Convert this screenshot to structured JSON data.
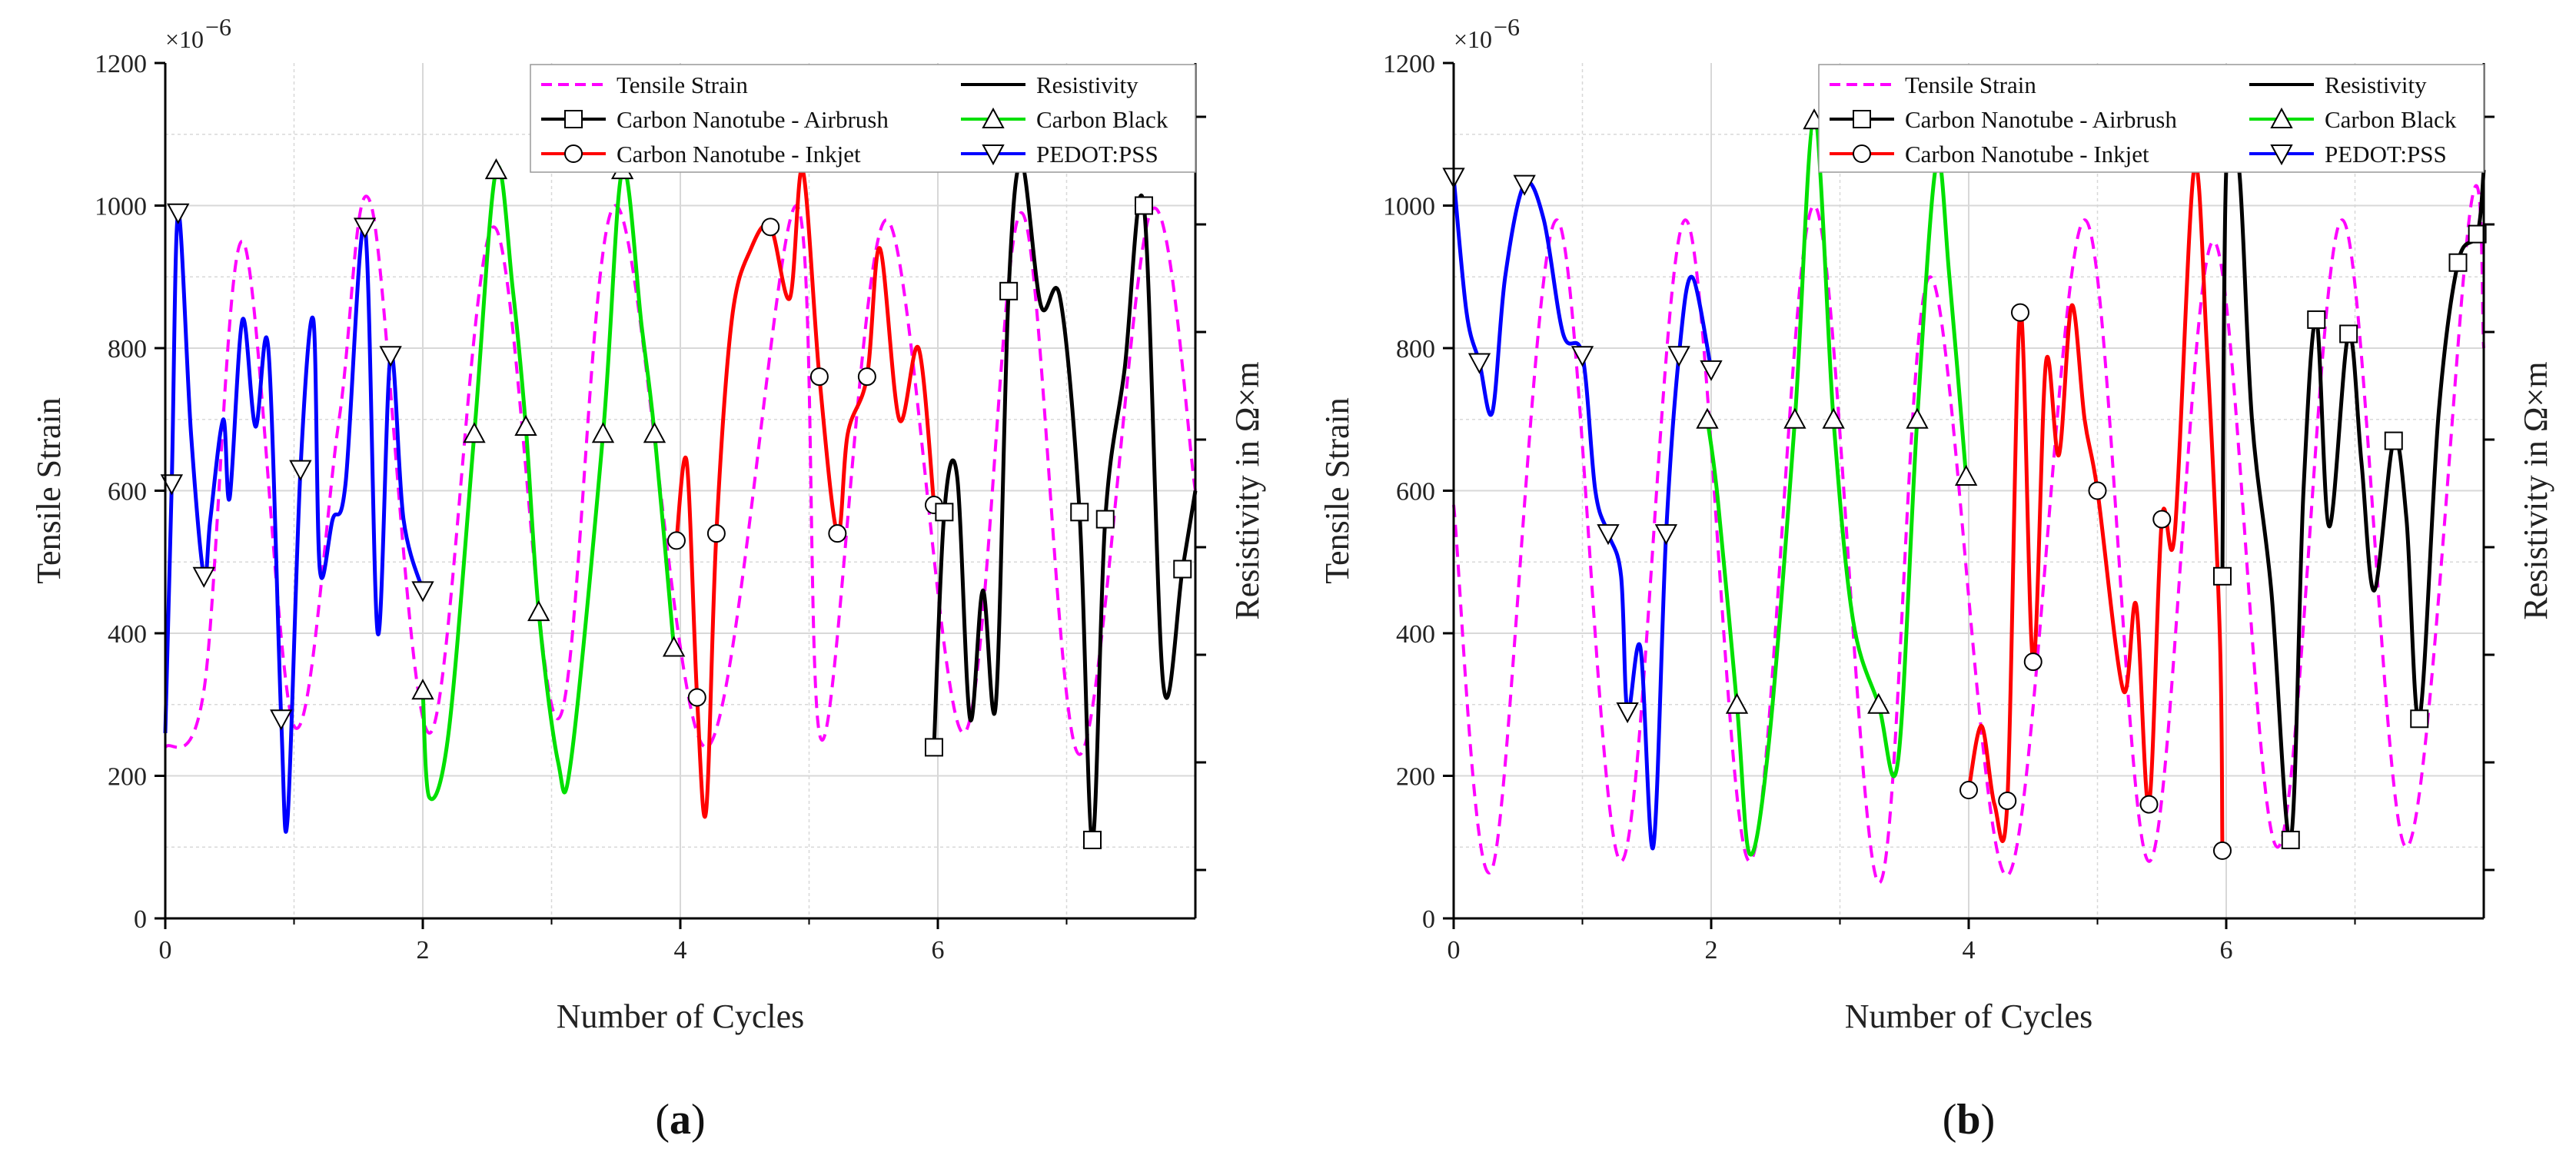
{
  "colors": {
    "strain": "#ff00ff",
    "cnt_airbrush": "#000000",
    "cnt_inkjet": "#ff0000",
    "carbon_black": "#00e000",
    "pedot": "#0000ff",
    "grid": "#d8d8d8",
    "axis": "#000000"
  },
  "chart_data": [
    {
      "id": "a",
      "type": "line",
      "caption_label": "a",
      "title": "",
      "xlabel": "Number of Cycles",
      "ylabel": "Tensile Strain",
      "y2label": "Resistivity in Ω×m",
      "y_multiplier": "×10",
      "y_multiplier_exp": "−6",
      "xlim": [
        0,
        8
      ],
      "ylim": [
        0,
        1200
      ],
      "xticks": [
        0,
        2,
        4,
        6
      ],
      "xtick_labels": [
        "0",
        "2",
        "4",
        "6"
      ],
      "yticks": [
        0,
        200,
        400,
        600,
        800,
        1000,
        1200
      ],
      "ytick_labels": [
        "0",
        "200",
        "400",
        "600",
        "800",
        "1000",
        "1200"
      ],
      "legend": {
        "placement": "top-right",
        "entries": [
          {
            "label": "Tensile Strain",
            "style": "dashed",
            "color_key": "strain",
            "marker": "none"
          },
          {
            "label": "Resistivity",
            "style": "solid",
            "color_key": "cnt_airbrush",
            "marker": "none"
          },
          {
            "label": "Carbon Nanotube - Airbrush",
            "style": "solid",
            "color_key": "cnt_airbrush",
            "marker": "square"
          },
          {
            "label": "Carbon Black",
            "style": "solid",
            "color_key": "carbon_black",
            "marker": "triangle-up"
          },
          {
            "label": "Carbon Nanotube - Inkjet",
            "style": "solid",
            "color_key": "cnt_inkjet",
            "marker": "circle"
          },
          {
            "label": "PEDOT:PSS",
            "style": "solid",
            "color_key": "pedot",
            "marker": "triangle-down"
          }
        ]
      },
      "series": [
        {
          "name": "Tensile Strain",
          "color_key": "strain",
          "dashed": true,
          "marker": "none",
          "x": [
            0,
            0.3,
            0.6,
            1.0,
            1.35,
            1.6,
            2.05,
            2.55,
            3.05,
            3.5,
            4.2,
            4.9,
            5.1,
            5.6,
            6.2,
            6.65,
            7.1,
            7.65,
            8.0
          ],
          "y": [
            240,
            320,
            950,
            270,
            700,
            1000,
            260,
            970,
            280,
            1000,
            240,
            1000,
            250,
            980,
            260,
            990,
            230,
            990,
            600
          ]
        },
        {
          "name": "PEDOT:PSS",
          "color_key": "pedot",
          "marker": "triangle-down",
          "x": [
            0,
            0.05,
            0.1,
            0.2,
            0.3,
            0.35,
            0.45,
            0.5,
            0.6,
            0.7,
            0.8,
            0.9,
            0.95,
            1.05,
            1.15,
            1.2,
            1.3,
            1.4,
            1.55,
            1.65,
            1.75,
            1.85,
            2.0
          ],
          "y": [
            260,
            610,
            990,
            680,
            480,
            560,
            700,
            590,
            840,
            690,
            800,
            280,
            140,
            630,
            840,
            490,
            560,
            610,
            970,
            400,
            790,
            560,
            460
          ],
          "marker_indices": [
            1,
            2,
            4,
            11,
            13,
            18,
            20,
            22
          ]
        },
        {
          "name": "Carbon Black",
          "color_key": "carbon_black",
          "marker": "triangle-up",
          "x": [
            2.0,
            2.05,
            2.2,
            2.4,
            2.57,
            2.7,
            2.8,
            2.9,
            3.05,
            3.15,
            3.4,
            3.55,
            3.7,
            3.8,
            3.95
          ],
          "y": [
            320,
            170,
            260,
            680,
            1050,
            880,
            690,
            430,
            220,
            220,
            680,
            1050,
            830,
            680,
            380
          ],
          "marker_indices": [
            0,
            3,
            4,
            6,
            7,
            10,
            11,
            13,
            14
          ]
        },
        {
          "name": "Carbon Nanotube - Inkjet",
          "color_key": "cnt_inkjet",
          "marker": "circle",
          "x": [
            3.97,
            4.05,
            4.13,
            4.2,
            4.28,
            4.4,
            4.55,
            4.7,
            4.85,
            4.95,
            5.08,
            5.22,
            5.3,
            5.45,
            5.55,
            5.7,
            5.85,
            5.97
          ],
          "y": [
            530,
            640,
            310,
            150,
            540,
            840,
            940,
            970,
            870,
            1050,
            760,
            540,
            680,
            760,
            940,
            700,
            800,
            580
          ],
          "marker_indices": [
            0,
            2,
            4,
            7,
            10,
            11,
            13,
            17
          ]
        },
        {
          "name": "Carbon Nanotube - Airbrush",
          "color_key": "cnt_airbrush",
          "marker": "square",
          "x": [
            5.97,
            6.05,
            6.15,
            6.25,
            6.35,
            6.45,
            6.55,
            6.65,
            6.8,
            6.95,
            7.1,
            7.2,
            7.3,
            7.45,
            7.6,
            7.75,
            7.9,
            8.0
          ],
          "y": [
            240,
            570,
            620,
            280,
            460,
            300,
            880,
            1060,
            860,
            870,
            570,
            110,
            560,
            770,
            1000,
            330,
            490,
            600
          ],
          "marker_indices": [
            0,
            1,
            6,
            10,
            11,
            12,
            14,
            16
          ]
        }
      ]
    },
    {
      "id": "b",
      "type": "line",
      "caption_label": "b",
      "title": "",
      "xlabel": "Number of Cycles",
      "ylabel": "Tensile Strain",
      "y2label": "Resistivity in Ω×m",
      "y_multiplier": "×10",
      "y_multiplier_exp": "−6",
      "xlim": [
        0,
        8
      ],
      "ylim": [
        0,
        1200
      ],
      "xticks": [
        0,
        2,
        4,
        6
      ],
      "xtick_labels": [
        "0",
        "2",
        "4",
        "6"
      ],
      "yticks": [
        0,
        200,
        400,
        600,
        800,
        1000,
        1200
      ],
      "ytick_labels": [
        "0",
        "200",
        "400",
        "600",
        "800",
        "1000",
        "1200"
      ],
      "legend": {
        "placement": "top-right",
        "entries": [
          {
            "label": "Tensile Strain",
            "style": "dashed",
            "color_key": "strain",
            "marker": "none"
          },
          {
            "label": "Resistivity",
            "style": "solid",
            "color_key": "cnt_airbrush",
            "marker": "none"
          },
          {
            "label": "Carbon Nanotube - Airbrush",
            "style": "solid",
            "color_key": "cnt_airbrush",
            "marker": "square"
          },
          {
            "label": "Carbon Black",
            "style": "solid",
            "color_key": "carbon_black",
            "marker": "triangle-up"
          },
          {
            "label": "Carbon Nanotube - Inkjet",
            "style": "solid",
            "color_key": "cnt_inkjet",
            "marker": "circle"
          },
          {
            "label": "PEDOT:PSS",
            "style": "solid",
            "color_key": "pedot",
            "marker": "triangle-down"
          }
        ]
      },
      "series": [
        {
          "name": "Tensile Strain",
          "color_key": "strain",
          "dashed": true,
          "marker": "none",
          "x": [
            0,
            0.3,
            0.8,
            1.3,
            1.8,
            2.3,
            2.8,
            3.3,
            3.7,
            4.3,
            4.9,
            5.4,
            5.9,
            6.4,
            6.9,
            7.4,
            7.9,
            8.0
          ],
          "y": [
            580,
            70,
            980,
            80,
            980,
            80,
            1000,
            50,
            900,
            60,
            980,
            80,
            950,
            100,
            980,
            100,
            1000,
            800
          ]
        },
        {
          "name": "PEDOT:PSS",
          "color_key": "pedot",
          "marker": "triangle-down",
          "x": [
            0,
            0.1,
            0.2,
            0.3,
            0.4,
            0.55,
            0.7,
            0.85,
            1.0,
            1.1,
            1.2,
            1.3,
            1.35,
            1.45,
            1.55,
            1.65,
            1.75,
            1.85,
            2.0
          ],
          "y": [
            1040,
            850,
            780,
            710,
            900,
            1030,
            980,
            820,
            790,
            600,
            540,
            480,
            290,
            380,
            100,
            540,
            790,
            900,
            770
          ],
          "marker_indices": [
            0,
            2,
            5,
            8,
            10,
            12,
            15,
            16,
            18
          ]
        },
        {
          "name": "Carbon Black",
          "color_key": "carbon_black",
          "marker": "triangle-up",
          "x": [
            1.97,
            2.05,
            2.2,
            2.3,
            2.45,
            2.65,
            2.8,
            2.95,
            3.1,
            3.3,
            3.45,
            3.6,
            3.75,
            3.85,
            3.98
          ],
          "y": [
            700,
            590,
            300,
            90,
            250,
            700,
            1120,
            700,
            420,
            300,
            220,
            700,
            1060,
            900,
            620
          ],
          "marker_indices": [
            0,
            2,
            5,
            6,
            7,
            9,
            11,
            14
          ]
        },
        {
          "name": "Carbon Nanotube - Inkjet",
          "color_key": "cnt_inkjet",
          "marker": "circle",
          "x": [
            4.0,
            4.1,
            4.2,
            4.3,
            4.4,
            4.5,
            4.6,
            4.7,
            4.8,
            4.9,
            5.0,
            5.2,
            5.3,
            5.4,
            5.5,
            5.6,
            5.75,
            5.85,
            5.95,
            5.97
          ],
          "y": [
            180,
            270,
            160,
            165,
            850,
            360,
            780,
            650,
            860,
            700,
            600,
            320,
            440,
            160,
            560,
            540,
            1050,
            800,
            400,
            95
          ],
          "marker_indices": [
            0,
            3,
            4,
            5,
            10,
            13,
            14,
            19
          ]
        },
        {
          "name": "Carbon Nanotube - Airbrush",
          "color_key": "cnt_airbrush",
          "marker": "square",
          "x": [
            5.97,
            6.0,
            6.1,
            6.2,
            6.35,
            6.5,
            6.6,
            6.7,
            6.8,
            6.95,
            7.05,
            7.15,
            7.3,
            7.4,
            7.5,
            7.65,
            7.8,
            7.95,
            8.0
          ],
          "y": [
            480,
            1050,
            1050,
            700,
            460,
            110,
            600,
            840,
            550,
            820,
            640,
            460,
            670,
            560,
            280,
            710,
            920,
            960,
            1050
          ],
          "marker_indices": [
            0,
            5,
            7,
            9,
            12,
            14,
            16,
            17
          ]
        }
      ]
    }
  ]
}
